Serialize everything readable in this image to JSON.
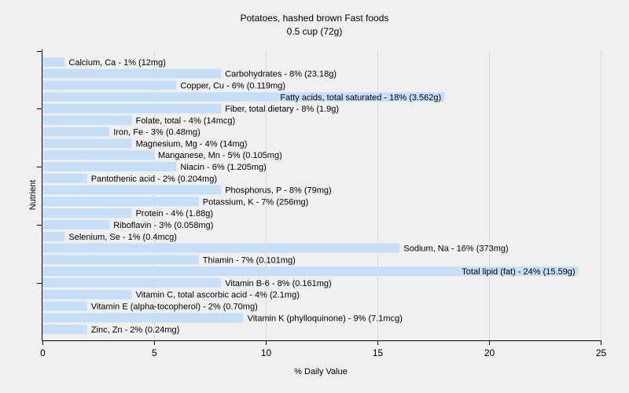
{
  "chart_data": {
    "type": "bar",
    "orientation": "horizontal",
    "title": "Potatoes, hashed brown Fast foods",
    "subtitle": "0.5 cup (72g)",
    "xlabel": "% Daily Value",
    "ylabel": "Nutrient",
    "xlim": [
      0,
      25
    ],
    "xticks": [
      0,
      5,
      10,
      15,
      20,
      25
    ],
    "grid": true,
    "bar_color": "#c6dff7",
    "categories": [
      "Calcium, Ca",
      "Carbohydrates",
      "Copper, Cu",
      "Fatty acids, total saturated",
      "Fiber, total dietary",
      "Folate, total",
      "Iron, Fe",
      "Magnesium, Mg",
      "Manganese, Mn",
      "Niacin",
      "Pantothenic acid",
      "Phosphorus, P",
      "Potassium, K",
      "Protein",
      "Riboflavin",
      "Selenium, Se",
      "Sodium, Na",
      "Thiamin",
      "Total lipid (fat)",
      "Vitamin B-6",
      "Vitamin C, total ascorbic acid",
      "Vitamin E (alpha-tocopherol)",
      "Vitamin K (phylloquinone)",
      "Zinc, Zn"
    ],
    "values": [
      1,
      8,
      6,
      18,
      8,
      4,
      3,
      4,
      5,
      6,
      2,
      8,
      7,
      4,
      3,
      1,
      16,
      7,
      24,
      8,
      4,
      2,
      9,
      2
    ],
    "labels": [
      "Calcium, Ca - 1% (12mg)",
      "Carbohydrates - 8% (23.18g)",
      "Copper, Cu - 6% (0.119mg)",
      "Fatty acids, total saturated - 18% (3.562g)",
      "Fiber, total dietary - 8% (1.9g)",
      "Folate, total - 4% (14mcg)",
      "Iron, Fe - 3% (0.48mg)",
      "Magnesium, Mg - 4% (14mg)",
      "Manganese, Mn - 5% (0.105mg)",
      "Niacin - 6% (1.205mg)",
      "Pantothenic acid - 2% (0.204mg)",
      "Phosphorus, P - 8% (79mg)",
      "Potassium, K - 7% (256mg)",
      "Protein - 4% (1.88g)",
      "Riboflavin - 3% (0.058mg)",
      "Selenium, Se - 1% (0.4mcg)",
      "Sodium, Na - 16% (373mg)",
      "Thiamin - 7% (0.101mg)",
      "Total lipid (fat) - 24% (15.59g)",
      "Vitamin B-6 - 8% (0.161mg)",
      "Vitamin C, total ascorbic acid - 4% (2.1mg)",
      "Vitamin E (alpha-tocopherol) - 2% (0.70mg)",
      "Vitamin K (phylloquinone) - 9% (7.1mcg)",
      "Zinc, Zn - 2% (0.24mg)"
    ]
  }
}
